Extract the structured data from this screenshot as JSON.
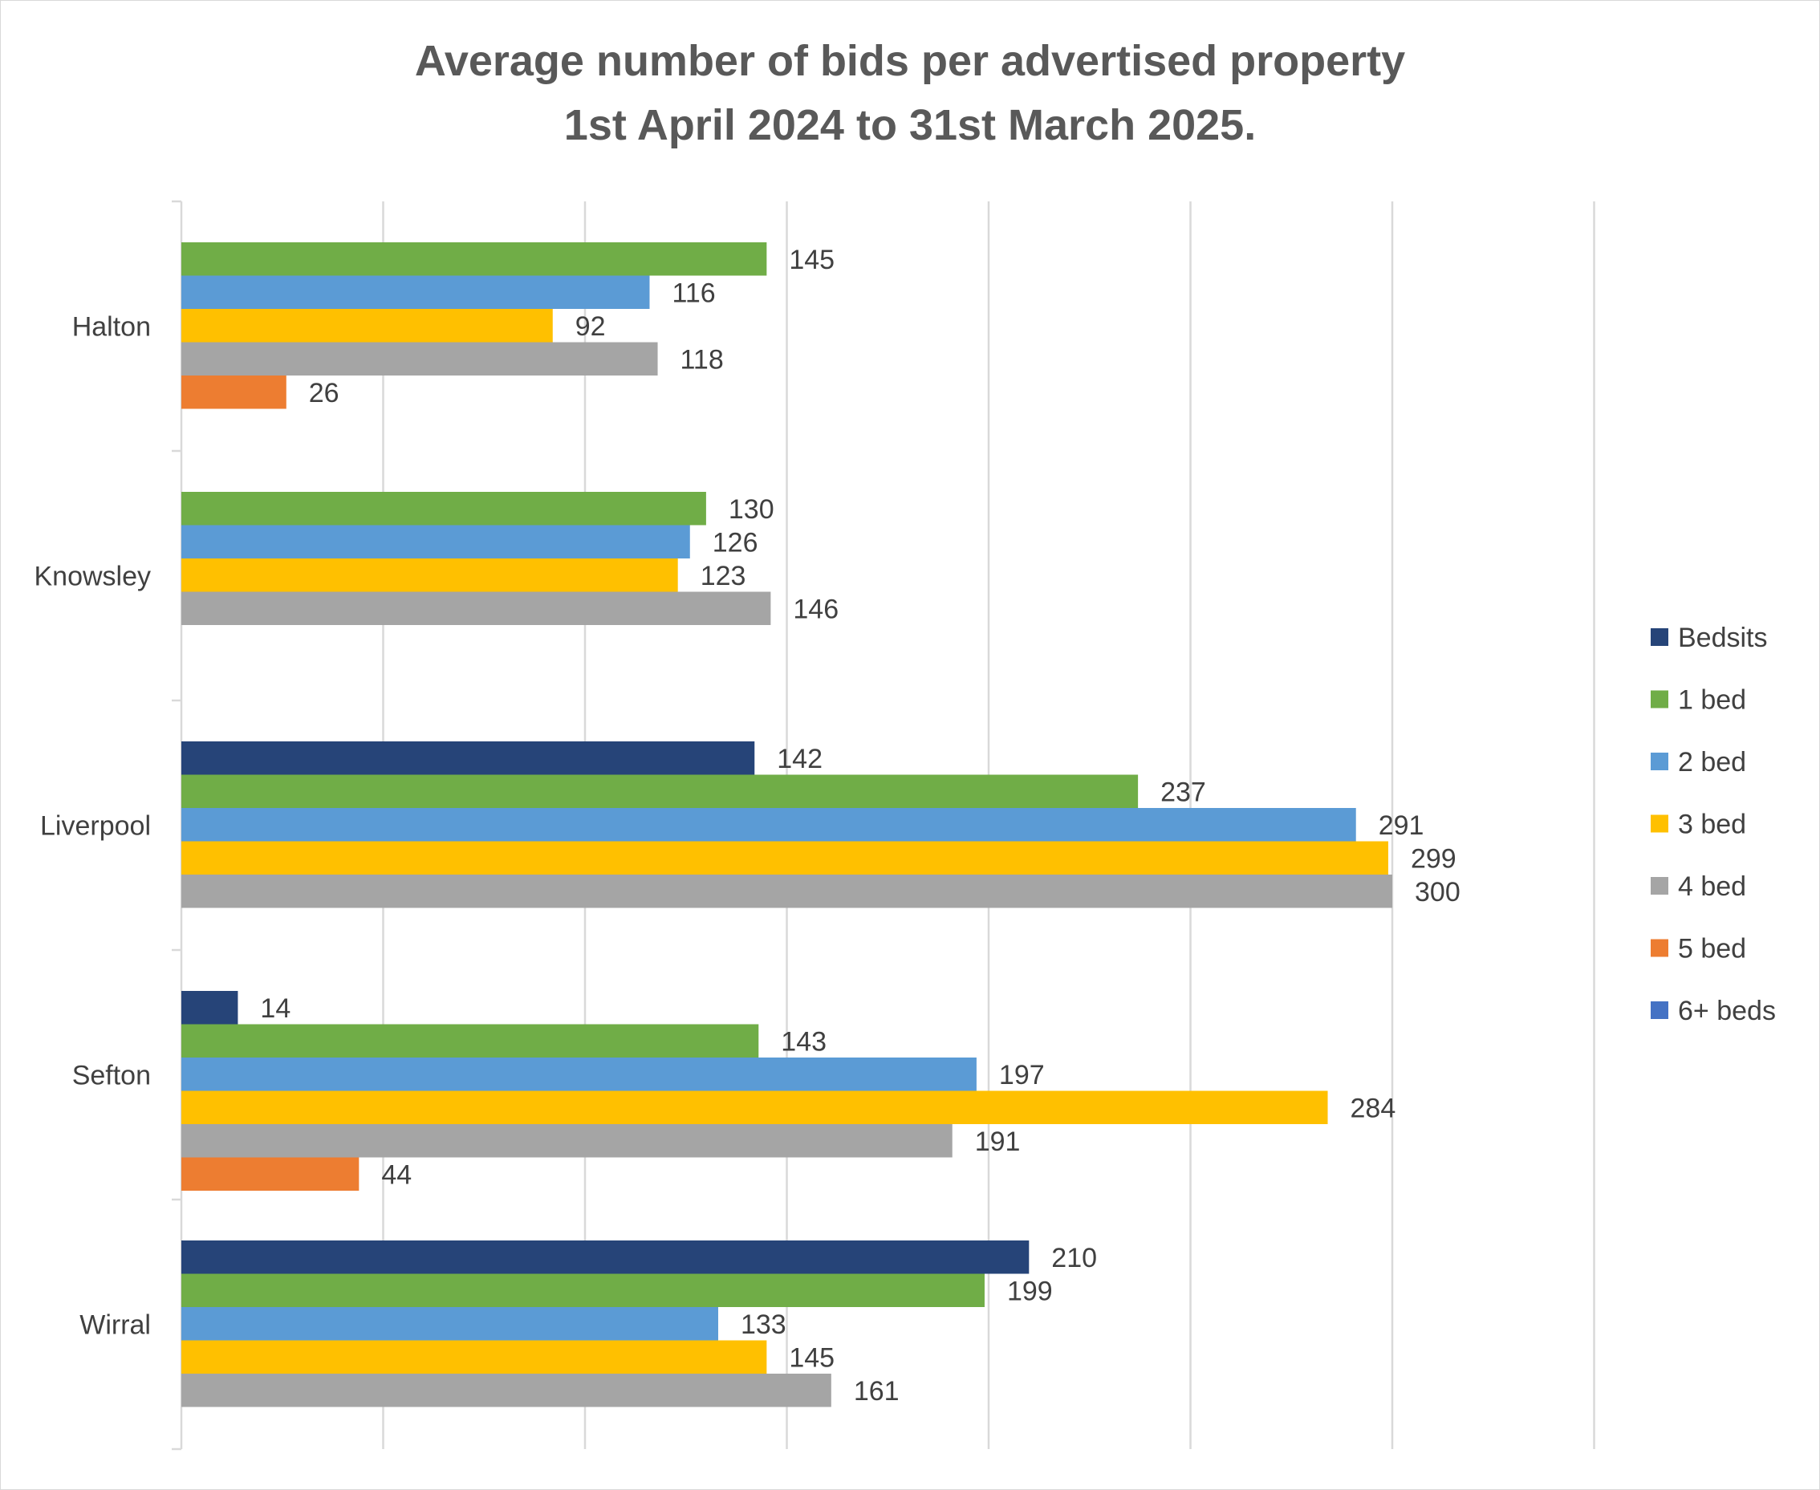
{
  "chart_data": {
    "type": "bar",
    "orientation": "horizontal",
    "title": "Average number of bids per advertised property",
    "subtitle": "1st April 2024 to 31st March 2025.",
    "categories": [
      "Halton",
      "Knowsley",
      "Liverpool",
      "Sefton",
      "Wirral"
    ],
    "series": [
      {
        "name": "Bedsits",
        "color": "#264478",
        "values": [
          null,
          null,
          142,
          14,
          210
        ]
      },
      {
        "name": "1 bed",
        "color": "#70AD47",
        "values": [
          145,
          130,
          237,
          143,
          199
        ]
      },
      {
        "name": "2 bed",
        "color": "#5B9BD5",
        "values": [
          116,
          126,
          291,
          197,
          133
        ]
      },
      {
        "name": "3 bed",
        "color": "#FFC000",
        "values": [
          92,
          123,
          299,
          284,
          145
        ]
      },
      {
        "name": "4 bed",
        "color": "#A5A5A5",
        "values": [
          118,
          146,
          300,
          191,
          161
        ]
      },
      {
        "name": "5 bed",
        "color": "#ED7D31",
        "values": [
          26,
          null,
          null,
          44,
          null
        ]
      },
      {
        "name": "6+ beds",
        "color": "#4472C4",
        "values": [
          null,
          null,
          null,
          null,
          null
        ]
      }
    ],
    "xlim": [
      0,
      350
    ],
    "grid": true,
    "axis_tick_labels_shown": false,
    "legend_position": "right",
    "data_labels": true
  }
}
